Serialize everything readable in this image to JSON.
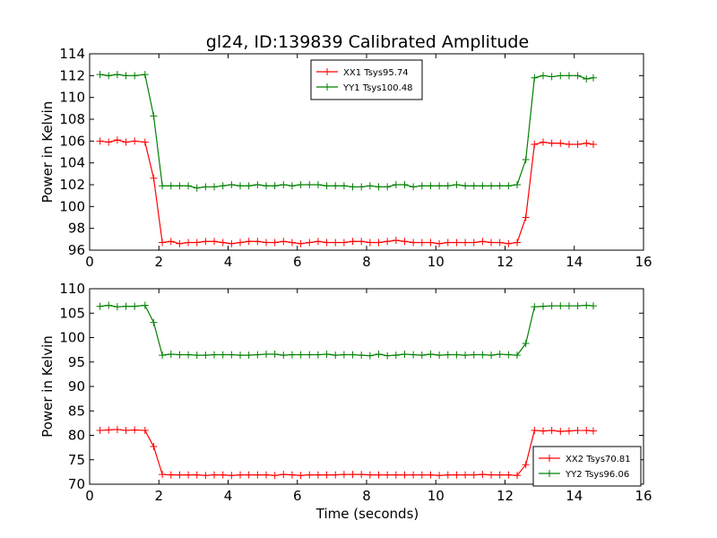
{
  "figure": {
    "title": "gl24, ID:139839 Calibrated Amplitude",
    "xlabel": "Time (seconds)"
  },
  "chart_data": [
    {
      "type": "line",
      "ylabel": "Power in Kelvin",
      "xlim": [
        0,
        16
      ],
      "ylim": [
        96,
        114
      ],
      "xticks": [
        0,
        2,
        4,
        6,
        8,
        10,
        12,
        14,
        16
      ],
      "yticks": [
        96,
        98,
        100,
        102,
        104,
        106,
        108,
        110,
        112,
        114
      ],
      "legend_position": "top-center",
      "x": [
        0.3,
        0.55,
        0.8,
        1.05,
        1.3,
        1.6,
        1.85,
        2.1,
        2.35,
        2.6,
        2.85,
        3.1,
        3.35,
        3.6,
        3.85,
        4.1,
        4.35,
        4.6,
        4.85,
        5.1,
        5.35,
        5.6,
        5.85,
        6.1,
        6.35,
        6.6,
        6.85,
        7.1,
        7.35,
        7.6,
        7.85,
        8.1,
        8.35,
        8.6,
        8.85,
        9.1,
        9.35,
        9.6,
        9.85,
        10.1,
        10.35,
        10.6,
        10.85,
        11.1,
        11.35,
        11.6,
        11.85,
        12.1,
        12.35,
        12.6,
        12.85,
        13.1,
        13.35,
        13.6,
        13.85,
        14.1,
        14.35,
        14.55
      ],
      "series": [
        {
          "name": "XX1 Tsys95.74",
          "color": "#ff0000",
          "values": [
            106.0,
            105.9,
            106.1,
            105.9,
            106.0,
            105.9,
            102.6,
            96.7,
            96.8,
            96.6,
            96.7,
            96.7,
            96.8,
            96.8,
            96.7,
            96.6,
            96.7,
            96.8,
            96.8,
            96.7,
            96.7,
            96.8,
            96.7,
            96.6,
            96.7,
            96.8,
            96.7,
            96.7,
            96.7,
            96.8,
            96.8,
            96.7,
            96.7,
            96.8,
            96.9,
            96.8,
            96.7,
            96.7,
            96.7,
            96.6,
            96.7,
            96.7,
            96.7,
            96.7,
            96.8,
            96.7,
            96.7,
            96.6,
            96.7,
            99.0,
            105.7,
            105.9,
            105.8,
            105.8,
            105.7,
            105.7,
            105.8,
            105.7
          ]
        },
        {
          "name": "YY1 Tsys100.48",
          "color": "#008000",
          "values": [
            112.1,
            112.0,
            112.1,
            112.0,
            112.0,
            112.1,
            108.3,
            101.9,
            101.9,
            101.9,
            101.9,
            101.7,
            101.8,
            101.8,
            101.9,
            102.0,
            101.9,
            101.9,
            102.0,
            101.9,
            101.9,
            102.0,
            101.9,
            102.0,
            102.0,
            102.0,
            101.9,
            101.9,
            101.9,
            101.8,
            101.8,
            101.9,
            101.8,
            101.8,
            102.0,
            102.0,
            101.8,
            101.9,
            101.9,
            101.9,
            101.9,
            102.0,
            101.9,
            101.9,
            101.9,
            101.9,
            101.9,
            101.9,
            102.0,
            104.3,
            111.8,
            112.0,
            111.9,
            112.0,
            112.0,
            112.0,
            111.7,
            111.8
          ]
        }
      ]
    },
    {
      "type": "line",
      "ylabel": "Power in Kelvin",
      "xlabel": "Time (seconds)",
      "xlim": [
        0,
        16
      ],
      "ylim": [
        70,
        110
      ],
      "xticks": [
        0,
        2,
        4,
        6,
        8,
        10,
        12,
        14,
        16
      ],
      "yticks": [
        70,
        75,
        80,
        85,
        90,
        95,
        100,
        105,
        110
      ],
      "legend_position": "bottom-right",
      "x": [
        0.3,
        0.55,
        0.8,
        1.05,
        1.3,
        1.6,
        1.85,
        2.1,
        2.35,
        2.6,
        2.85,
        3.1,
        3.35,
        3.6,
        3.85,
        4.1,
        4.35,
        4.6,
        4.85,
        5.1,
        5.35,
        5.6,
        5.85,
        6.1,
        6.35,
        6.6,
        6.85,
        7.1,
        7.35,
        7.6,
        7.85,
        8.1,
        8.35,
        8.6,
        8.85,
        9.1,
        9.35,
        9.6,
        9.85,
        10.1,
        10.35,
        10.6,
        10.85,
        11.1,
        11.35,
        11.6,
        11.85,
        12.1,
        12.35,
        12.6,
        12.85,
        13.1,
        13.35,
        13.6,
        13.85,
        14.1,
        14.35,
        14.55
      ],
      "series": [
        {
          "name": "XX2 Tsys70.81",
          "color": "#ff0000",
          "values": [
            81.0,
            81.1,
            81.2,
            81.0,
            81.1,
            81.0,
            77.7,
            72.0,
            71.9,
            71.9,
            71.9,
            71.9,
            71.8,
            71.9,
            71.9,
            71.8,
            71.9,
            71.9,
            71.9,
            71.9,
            71.8,
            72.0,
            71.9,
            71.8,
            71.9,
            71.9,
            71.9,
            71.9,
            72.0,
            72.0,
            72.0,
            71.9,
            71.9,
            71.9,
            71.9,
            71.9,
            71.9,
            71.9,
            71.9,
            71.8,
            71.9,
            71.9,
            71.9,
            71.9,
            72.0,
            71.9,
            71.9,
            71.9,
            71.8,
            74.0,
            81.0,
            80.9,
            81.0,
            80.8,
            80.9,
            81.0,
            81.0,
            80.9
          ]
        },
        {
          "name": "YY2 Tsys96.06",
          "color": "#008000",
          "values": [
            106.4,
            106.6,
            106.3,
            106.4,
            106.4,
            106.6,
            103.1,
            96.4,
            96.6,
            96.5,
            96.5,
            96.4,
            96.4,
            96.5,
            96.5,
            96.5,
            96.4,
            96.4,
            96.5,
            96.6,
            96.6,
            96.4,
            96.5,
            96.5,
            96.5,
            96.5,
            96.6,
            96.4,
            96.5,
            96.5,
            96.4,
            96.3,
            96.6,
            96.3,
            96.4,
            96.6,
            96.5,
            96.4,
            96.6,
            96.4,
            96.5,
            96.5,
            96.4,
            96.5,
            96.5,
            96.4,
            96.6,
            96.5,
            96.4,
            98.8,
            106.3,
            106.4,
            106.5,
            106.5,
            106.5,
            106.5,
            106.6,
            106.5
          ]
        }
      ]
    }
  ]
}
